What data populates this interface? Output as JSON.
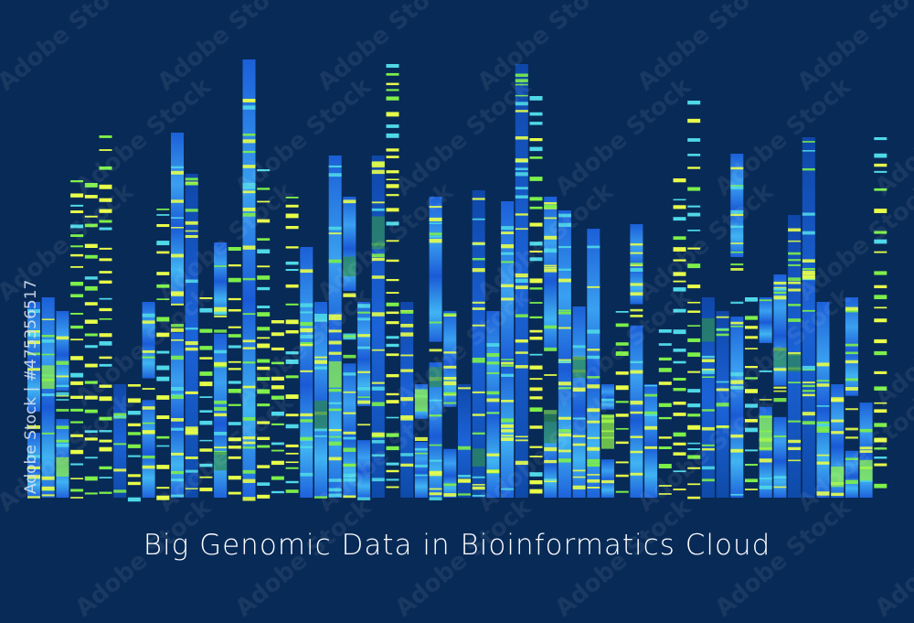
{
  "title": "Big Genomic Data in Bioinformatics Cloud",
  "watermark": {
    "stock_id": "Adobe Stock | #475356517",
    "text": "Adobe Stock"
  },
  "colors": {
    "background": "#082a57",
    "bar_blue": "#1e63e0",
    "bar_light": "#3aa8f0",
    "band_yellow": "#e8ff4a",
    "band_green": "#7df04a",
    "band_cyan": "#4fd8e8"
  }
}
